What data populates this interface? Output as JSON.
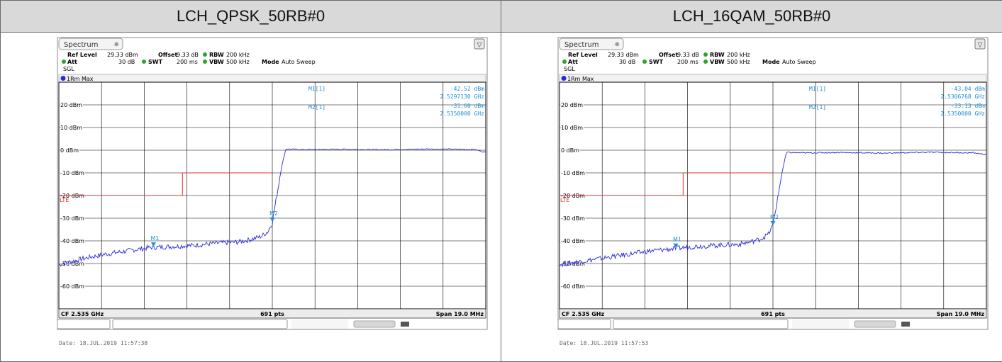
{
  "columns": [
    {
      "header": "LCH_QPSK_50RB#0",
      "window_title": "Spectrum",
      "ref_level": "29.33 dBm",
      "offset": "9.33 dB",
      "rbw": "200 kHz",
      "att": "30 dB",
      "swt": "200 ms",
      "vbw": "500 kHz",
      "mode": "Auto Sweep",
      "sgl": "SGL",
      "trace": "1Rm Max",
      "markers": [
        {
          "label": "M1[1]",
          "level": "-42.52 dBm",
          "freq": "2.5297130 GHz"
        },
        {
          "label": "M2[1]",
          "level": "-31.60 dBm",
          "freq": "2.5350000 GHz"
        }
      ],
      "cf": "CF 2.535 GHz",
      "pts": "691 pts",
      "span": "Span 19.0 MHz",
      "date": "Date: 18.JUL.2019  11:57:38"
    },
    {
      "header": "LCH_16QAM_50RB#0",
      "window_title": "Spectrum",
      "ref_level": "29.33 dBm",
      "offset": "9.33 dB",
      "rbw": "200 kHz",
      "att": "30 dB",
      "swt": "200 ms",
      "vbw": "500 kHz",
      "mode": "Auto Sweep",
      "sgl": "SGL",
      "trace": "1Rm Max",
      "markers": [
        {
          "label": "M1[1]",
          "level": "-43.04 dBm",
          "freq": "2.5306768 GHz"
        },
        {
          "label": "M2[1]",
          "level": "-33.13 dBm",
          "freq": "2.5350000 GHz"
        }
      ],
      "cf": "CF 2.535 GHz",
      "pts": "691 pts",
      "span": "Span 19.0 MHz",
      "date": "Date: 18.JUL.2019  11:57:53"
    }
  ],
  "labels": {
    "ref_level": "Ref Level",
    "offset": "Offset",
    "rbw": "RBW",
    "att": "Att",
    "swt": "SWT",
    "vbw": "VBW",
    "mode": "Mode",
    "limit_line": "LTE",
    "m1_tag": "M1",
    "m2_tag": "M2"
  },
  "colors": {
    "trace": "#2b2bd8",
    "limit": "#e03030",
    "marker": "#1f8fd0",
    "grid": "#000000",
    "header_bg": "#d9d9d9"
  },
  "chart_data": [
    {
      "type": "line",
      "title": "LCH_QPSK_50RB#0",
      "ylabel": "",
      "xlabel": "",
      "yticks": [
        "20 dBm",
        "10 dBm",
        "0 dBm",
        "-10 dBm",
        "-20 dBm",
        "-30 dBm",
        "-40 dBm",
        "-50 dBm",
        "-60 dBm"
      ],
      "ylim": [
        -70,
        30
      ],
      "xlim_mhz": [
        2525.5,
        2544.5
      ],
      "grid": true,
      "series": [
        {
          "x": [
            2525.5,
            2526.5,
            2527.5,
            2528.5,
            2529.5,
            2530.5,
            2531.5,
            2532.5,
            2533.5,
            2534.0,
            2534.5,
            2534.8,
            2535.0,
            2535.2,
            2535.4,
            2535.6,
            2536.5,
            2538.0,
            2540.0,
            2542.0,
            2544.0,
            2544.5
          ],
          "y": [
            -50.5,
            -48,
            -46,
            -44.5,
            -43,
            -42.5,
            -42,
            -41,
            -40.5,
            -39.5,
            -38,
            -36,
            -32,
            -20,
            -8,
            0.5,
            0.2,
            0.4,
            0.2,
            0.5,
            0.3,
            -1
          ]
        }
      ],
      "limit_line": {
        "x": [
          2525.5,
          2531.0,
          2531.0,
          2535.0
        ],
        "y": [
          -20,
          -20,
          -10,
          -10
        ]
      },
      "markers": [
        {
          "name": "M1",
          "x": 2529.713,
          "y": -42.52
        },
        {
          "name": "M2",
          "x": 2535.0,
          "y": -31.6
        }
      ]
    },
    {
      "type": "line",
      "title": "LCH_16QAM_50RB#0",
      "ylabel": "",
      "xlabel": "",
      "yticks": [
        "20 dBm",
        "10 dBm",
        "0 dBm",
        "-10 dBm",
        "-20 dBm",
        "-30 dBm",
        "-40 dBm",
        "-50 dBm",
        "-60 dBm"
      ],
      "ylim": [
        -70,
        30
      ],
      "xlim_mhz": [
        2525.5,
        2544.5
      ],
      "grid": true,
      "series": [
        {
          "x": [
            2525.5,
            2526.5,
            2527.5,
            2528.5,
            2529.5,
            2530.5,
            2531.5,
            2532.5,
            2533.5,
            2534.0,
            2534.5,
            2534.8,
            2535.0,
            2535.2,
            2535.4,
            2535.6,
            2536.5,
            2538.0,
            2540.0,
            2542.0,
            2544.0,
            2544.5
          ],
          "y": [
            -50.5,
            -49,
            -47.5,
            -46,
            -44.5,
            -43.5,
            -42.5,
            -42,
            -41.5,
            -40.5,
            -39,
            -37,
            -33,
            -22,
            -10,
            -1,
            -1.2,
            -1,
            -1.3,
            -0.9,
            -1.2,
            -2
          ]
        }
      ],
      "limit_line": {
        "x": [
          2525.5,
          2531.0,
          2531.0,
          2535.0
        ],
        "y": [
          -20,
          -20,
          -10,
          -10
        ]
      },
      "markers": [
        {
          "name": "M1",
          "x": 2530.677,
          "y": -43.04
        },
        {
          "name": "M2",
          "x": 2535.0,
          "y": -33.13
        }
      ]
    }
  ]
}
